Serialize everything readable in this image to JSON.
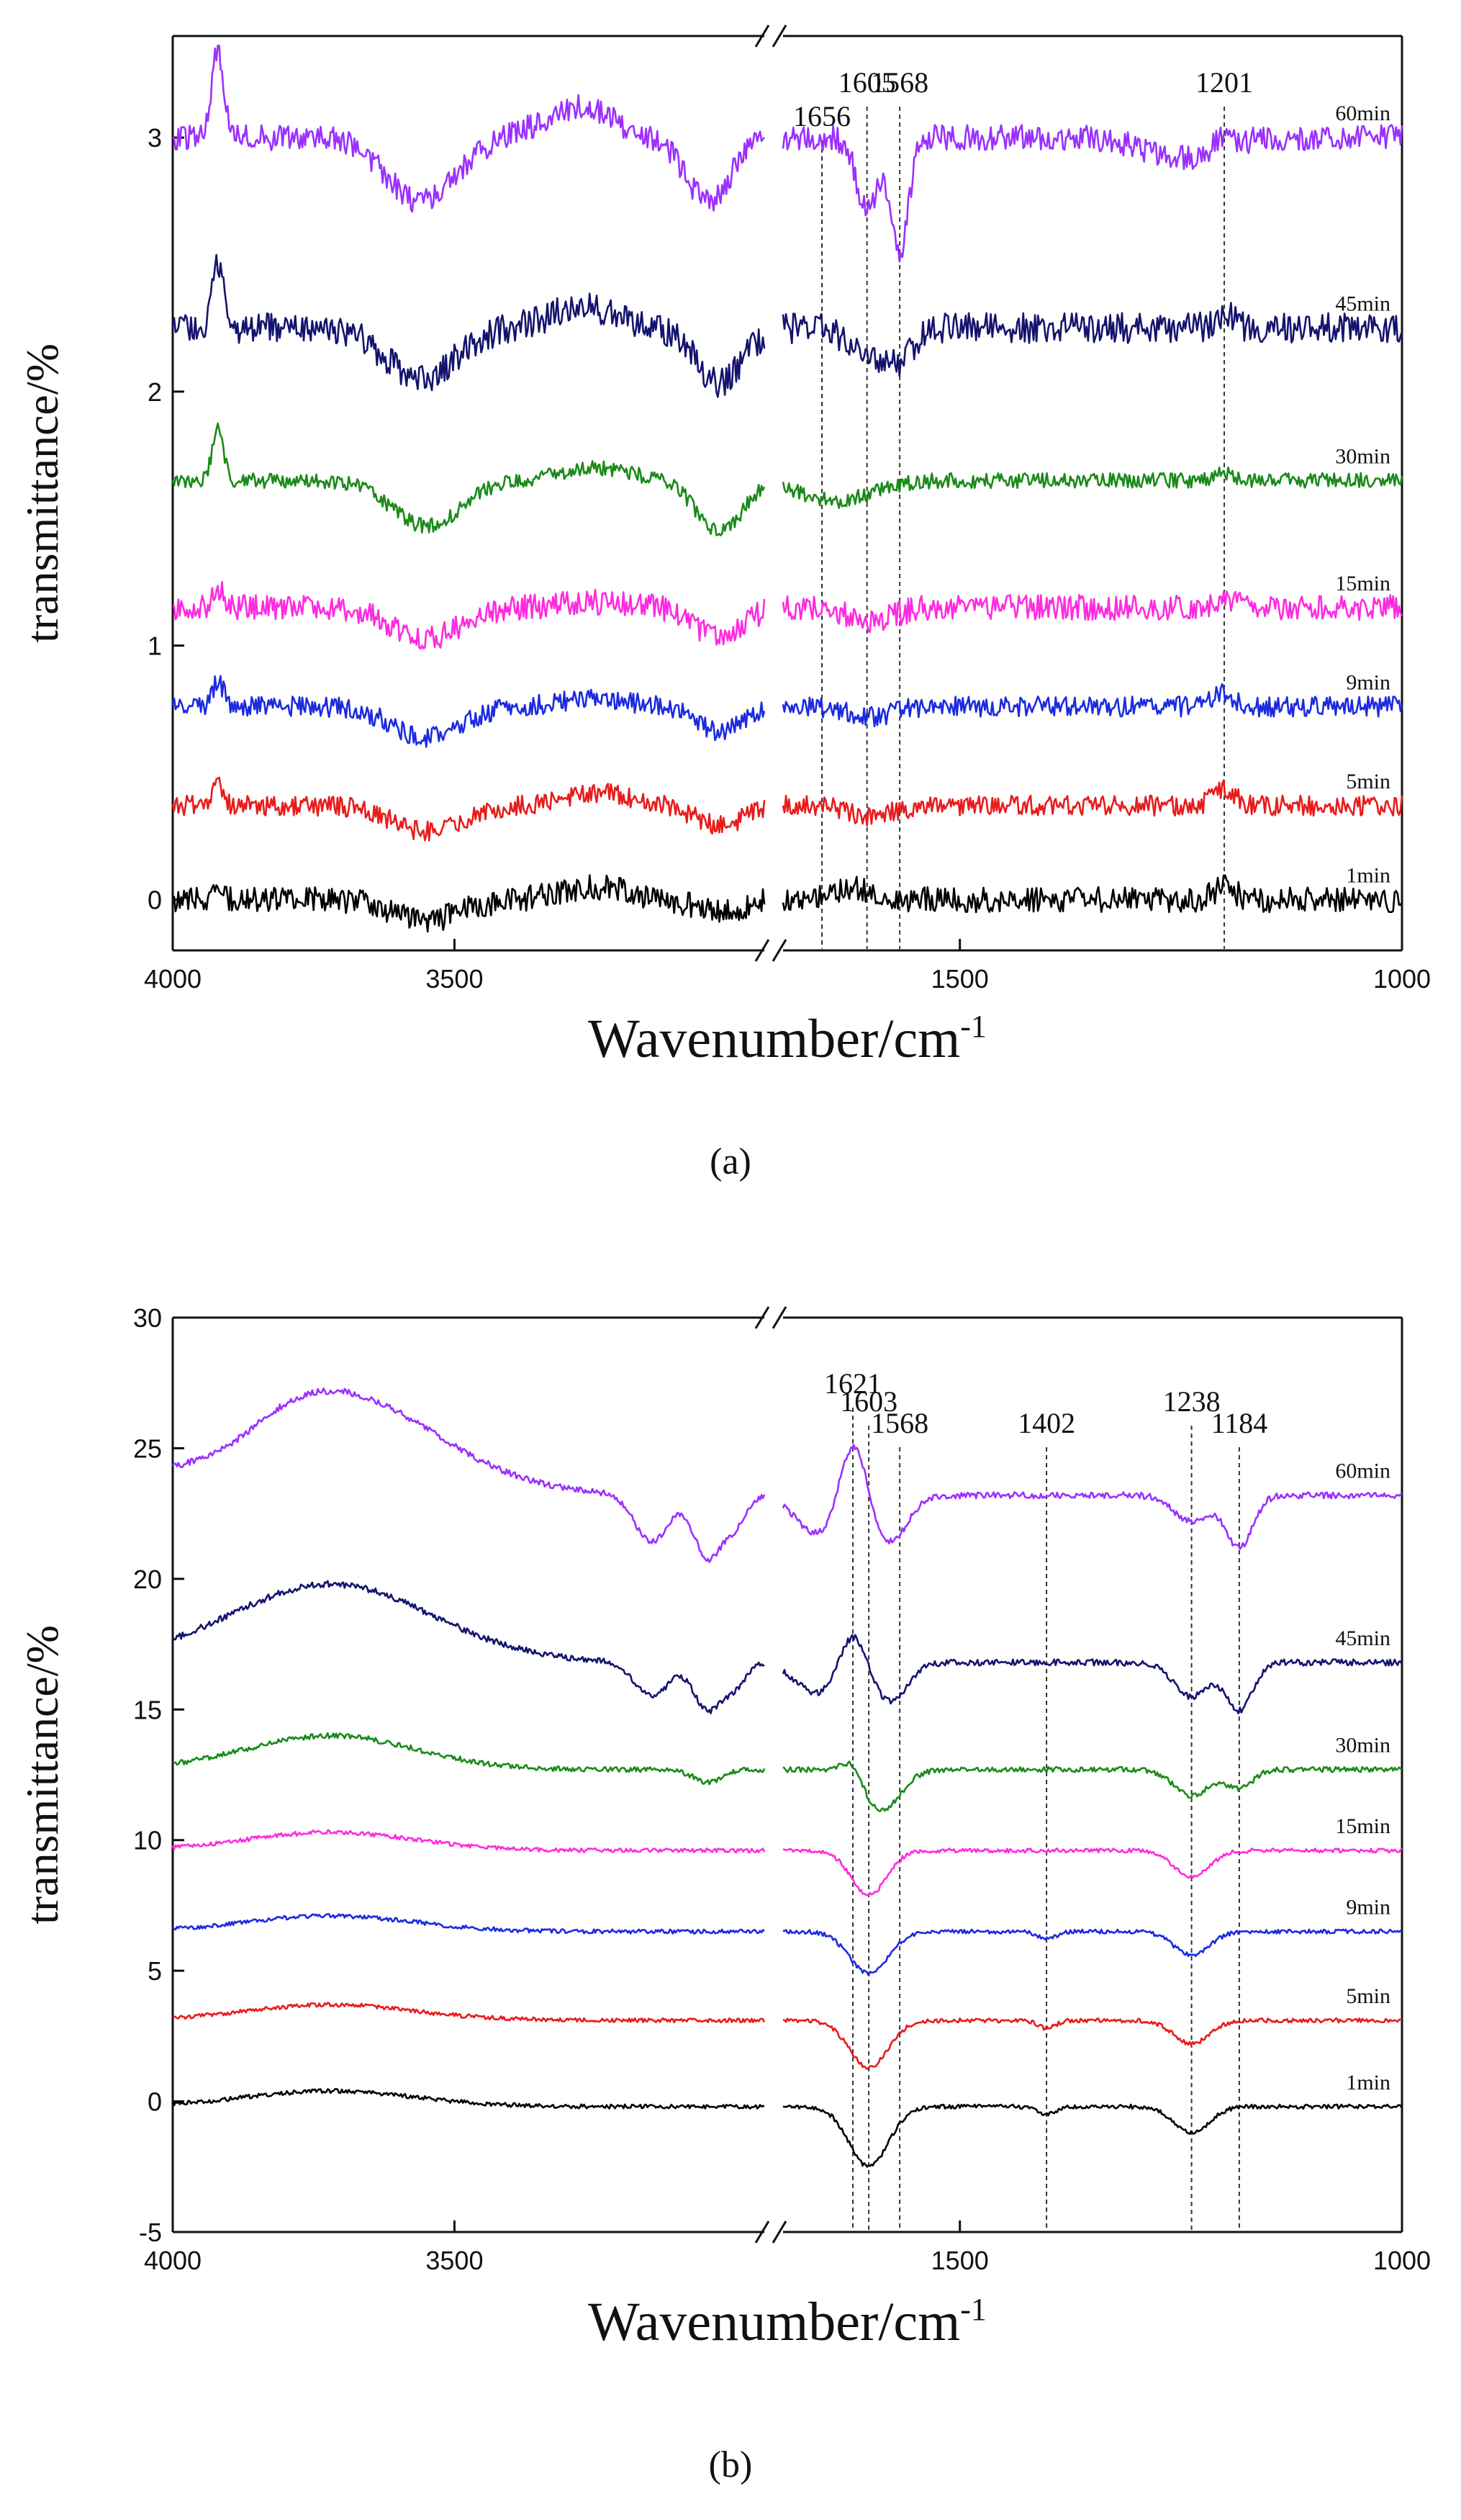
{
  "figure": {
    "background": "#ffffff",
    "axis_color": "#111111",
    "series_colors": {
      "60min": "#9b30ff",
      "45min": "#14146e",
      "30min": "#1a8a1a",
      "15min": "#ff2be0",
      "9min": "#1c2be0",
      "5min": "#e81c1c",
      "1min": "#000000"
    }
  },
  "chart_data": [
    {
      "type": "line",
      "panel_label": "(a)",
      "title": "",
      "xlabel": "Wavenumber/cm",
      "xlabel_superscript": "-1",
      "ylabel": "transmittance/%",
      "x_segments": [
        {
          "range": [
            4000,
            2950
          ],
          "ticks": [
            4000,
            3500
          ]
        },
        {
          "range": [
            1700,
            1000
          ],
          "ticks": [
            1500,
            1000
          ]
        }
      ],
      "x_tick_labels": [
        "4000",
        "3500",
        "1500",
        "1000"
      ],
      "ylim": [
        -0.2,
        3.4
      ],
      "yticks": [
        0,
        1,
        2,
        3
      ],
      "y_tick_labels": [
        "0",
        "1",
        "2",
        "3"
      ],
      "axis_break": true,
      "peak_markers": [
        {
          "x": 1656,
          "label": "1656"
        },
        {
          "x": 1605,
          "label": "1605"
        },
        {
          "x": 1568,
          "label": "1568"
        },
        {
          "x": 1201,
          "label": "1201"
        }
      ],
      "series": [
        {
          "name": "60min",
          "baseline": 3.0,
          "high_features": [
            [
              3920,
              0.35,
              10
            ],
            [
              3280,
              0.12,
              60
            ],
            [
              3560,
              -0.25,
              60
            ],
            [
              3050,
              -0.25,
              40
            ]
          ],
          "low_features": [
            [
              1605,
              -0.28,
              12
            ],
            [
              1568,
              -0.45,
              10
            ],
            [
              1250,
              -0.08,
              40
            ],
            [
              1201,
              0.05,
              10
            ]
          ],
          "noise": 0.05
        },
        {
          "name": "45min",
          "baseline": 2.25,
          "high_features": [
            [
              3920,
              0.25,
              10
            ],
            [
              3270,
              0.08,
              60
            ],
            [
              3560,
              -0.2,
              60
            ],
            [
              3030,
              -0.22,
              40
            ]
          ],
          "low_features": [
            [
              1605,
              -0.1,
              20
            ],
            [
              1568,
              -0.12,
              15
            ],
            [
              1201,
              0.05,
              12
            ]
          ],
          "noise": 0.06
        },
        {
          "name": "30min",
          "baseline": 1.65,
          "high_features": [
            [
              3920,
              0.2,
              10
            ],
            [
              3250,
              0.05,
              60
            ],
            [
              3550,
              -0.18,
              60
            ],
            [
              3030,
              -0.2,
              40
            ]
          ],
          "low_features": [
            [
              1640,
              -0.08,
              40
            ],
            [
              1201,
              0.03,
              12
            ]
          ],
          "noise": 0.03
        },
        {
          "name": "15min",
          "baseline": 1.15,
          "high_features": [
            [
              3920,
              0.08,
              10
            ],
            [
              3250,
              0.02,
              60
            ],
            [
              3550,
              -0.12,
              60
            ],
            [
              3030,
              -0.12,
              40
            ]
          ],
          "low_features": [
            [
              1600,
              -0.05,
              25
            ],
            [
              1201,
              0.04,
              12
            ]
          ],
          "noise": 0.05
        },
        {
          "name": "9min",
          "baseline": 0.76,
          "high_features": [
            [
              3920,
              0.1,
              10
            ],
            [
              3250,
              0.03,
              60
            ],
            [
              3550,
              -0.12,
              60
            ],
            [
              3030,
              -0.1,
              40
            ]
          ],
          "low_features": [
            [
              1600,
              -0.04,
              25
            ],
            [
              1201,
              0.05,
              12
            ]
          ],
          "noise": 0.04
        },
        {
          "name": "5min",
          "baseline": 0.37,
          "high_features": [
            [
              3920,
              0.08,
              10
            ],
            [
              3250,
              0.05,
              60
            ],
            [
              3550,
              -0.1,
              60
            ],
            [
              3030,
              -0.08,
              40
            ]
          ],
          "low_features": [
            [
              1600,
              -0.04,
              25
            ],
            [
              1201,
              0.07,
              12
            ]
          ],
          "noise": 0.04
        },
        {
          "name": "1min",
          "baseline": 0.0,
          "high_features": [
            [
              3920,
              0.05,
              10
            ],
            [
              3250,
              0.05,
              60
            ],
            [
              3550,
              -0.08,
              60
            ],
            [
              3030,
              -0.05,
              40
            ]
          ],
          "low_features": [
            [
              1620,
              0.05,
              20
            ],
            [
              1201,
              0.05,
              12
            ]
          ],
          "noise": 0.05
        }
      ]
    },
    {
      "type": "line",
      "panel_label": "(b)",
      "title": "",
      "xlabel": "Wavenumber/cm",
      "xlabel_superscript": "-1",
      "ylabel": "transmittance/%",
      "x_segments": [
        {
          "range": [
            4000,
            2950
          ],
          "ticks": [
            4000,
            3500
          ]
        },
        {
          "range": [
            1700,
            1000
          ],
          "ticks": [
            1500,
            1000
          ]
        }
      ],
      "x_tick_labels": [
        "4000",
        "3500",
        "1500",
        "1000"
      ],
      "ylim": [
        -5,
        30
      ],
      "yticks": [
        -5,
        0,
        5,
        10,
        15,
        20,
        25,
        30
      ],
      "y_tick_labels": [
        "-5",
        "0",
        "5",
        "10",
        "15",
        "20",
        "25",
        "30"
      ],
      "axis_break": true,
      "peak_markers": [
        {
          "x": 1621,
          "label": "1621"
        },
        {
          "x": 1603,
          "label": "1603"
        },
        {
          "x": 1568,
          "label": "1568"
        },
        {
          "x": 1402,
          "label": "1402"
        },
        {
          "x": 1238,
          "label": "1238"
        },
        {
          "x": 1184,
          "label": "1184"
        }
      ],
      "series": [
        {
          "name": "60min",
          "baseline": 23.2,
          "high_features": [
            [
              3720,
              4.0,
              180
            ],
            [
              3900,
              -0.5,
              60
            ],
            [
              3150,
              -1.8,
              30
            ],
            [
              3050,
              -2.4,
              25
            ],
            [
              3000,
              -1.0,
              20
            ]
          ],
          "low_features": [
            [
              1621,
              2.5,
              15
            ],
            [
              1660,
              -1.5,
              25
            ],
            [
              1580,
              -1.8,
              20
            ],
            [
              1238,
              -1.0,
              20
            ],
            [
              1184,
              -2.0,
              15
            ]
          ],
          "noise": 0.12
        },
        {
          "name": "45min",
          "baseline": 16.8,
          "high_features": [
            [
              3720,
              3.0,
              180
            ],
            [
              3150,
              -1.3,
              30
            ],
            [
              3050,
              -1.8,
              25
            ],
            [
              3000,
              -0.8,
              20
            ]
          ],
          "low_features": [
            [
              1621,
              1.5,
              15
            ],
            [
              1660,
              -1.2,
              25
            ],
            [
              1580,
              -1.5,
              20
            ],
            [
              1238,
              -1.3,
              20
            ],
            [
              1184,
              -1.8,
              15
            ]
          ],
          "noise": 0.12
        },
        {
          "name": "30min",
          "baseline": 12.7,
          "high_features": [
            [
              3720,
              1.3,
              150
            ],
            [
              3050,
              -0.5,
              25
            ]
          ],
          "low_features": [
            [
              1621,
              0.7,
              12
            ],
            [
              1590,
              -1.6,
              22
            ],
            [
              1238,
              -1.0,
              20
            ],
            [
              1184,
              -0.7,
              15
            ]
          ],
          "noise": 0.1
        },
        {
          "name": "15min",
          "baseline": 9.6,
          "high_features": [
            [
              3720,
              0.7,
              150
            ]
          ],
          "low_features": [
            [
              1603,
              -1.7,
              20
            ],
            [
              1238,
              -1.0,
              20
            ]
          ],
          "noise": 0.08
        },
        {
          "name": "9min",
          "baseline": 6.5,
          "high_features": [
            [
              3720,
              0.6,
              150
            ]
          ],
          "low_features": [
            [
              1603,
              -1.6,
              22
            ],
            [
              1402,
              -0.3,
              10
            ],
            [
              1238,
              -0.9,
              20
            ]
          ],
          "noise": 0.08
        },
        {
          "name": "5min",
          "baseline": 3.1,
          "high_features": [
            [
              3720,
              0.6,
              150
            ]
          ],
          "low_features": [
            [
              1603,
              -1.8,
              22
            ],
            [
              1402,
              -0.3,
              10
            ],
            [
              1238,
              -0.9,
              20
            ]
          ],
          "noise": 0.08
        },
        {
          "name": "1min",
          "baseline": -0.2,
          "high_features": [
            [
              3720,
              0.6,
              150
            ]
          ],
          "low_features": [
            [
              1603,
              -2.3,
              22
            ],
            [
              1402,
              -0.3,
              10
            ],
            [
              1238,
              -1.0,
              20
            ]
          ],
          "noise": 0.08
        }
      ]
    }
  ]
}
